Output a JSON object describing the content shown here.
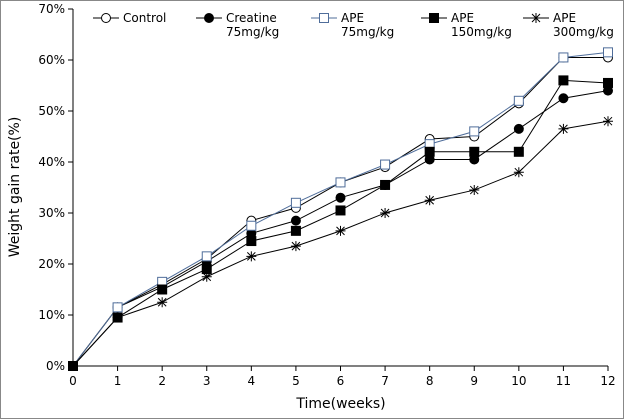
{
  "chart_data": {
    "type": "line",
    "x_label": "Time(weeks)",
    "y_label": "Weight gain rate(%)",
    "x": [
      0,
      1,
      2,
      3,
      4,
      5,
      6,
      7,
      8,
      9,
      10,
      11,
      12
    ],
    "xlim": [
      0,
      12
    ],
    "xticks": [
      0,
      1,
      2,
      3,
      4,
      5,
      6,
      7,
      8,
      9,
      10,
      11,
      12
    ],
    "ylim": [
      0,
      70
    ],
    "yticks": [
      {
        "value": 0,
        "label": "0%"
      },
      {
        "value": 10,
        "label": "10%"
      },
      {
        "value": 20,
        "label": "20%"
      },
      {
        "value": 30,
        "label": "30%"
      },
      {
        "value": 40,
        "label": "40%"
      },
      {
        "value": 50,
        "label": "50%"
      },
      {
        "value": 60,
        "label": "60%"
      },
      {
        "value": 70,
        "label": "70%"
      }
    ],
    "series": [
      {
        "name": "Control",
        "color": "#000000",
        "marker": "circle-open",
        "values": [
          0,
          11.5,
          16,
          21,
          28.5,
          31,
          36,
          39,
          44.5,
          45,
          51.5,
          60.5,
          60.5
        ]
      },
      {
        "name": "Creatine\n75mg/kg",
        "color": "#000000",
        "marker": "circle-filled",
        "values": [
          0,
          11.5,
          15.5,
          20.5,
          26,
          28.5,
          33,
          35.5,
          40.5,
          40.5,
          46.5,
          52.5,
          54
        ]
      },
      {
        "name": "APE\n75mg/kg",
        "color": "#4f6d9a",
        "marker": "square-open",
        "values": [
          0,
          11.5,
          16.5,
          21.5,
          27.5,
          32,
          36,
          39.5,
          43.5,
          46,
          52,
          60.5,
          61.5
        ]
      },
      {
        "name": "APE\n150mg/kg",
        "color": "#000000",
        "marker": "square-filled",
        "values": [
          0,
          9.5,
          15,
          19,
          24.5,
          26.5,
          30.5,
          35.5,
          42,
          42,
          42,
          56,
          55.5
        ]
      },
      {
        "name": "APE\n300mg/kg",
        "color": "#000000",
        "marker": "asterisk",
        "values": [
          0,
          9.5,
          12.5,
          17.5,
          21.5,
          23.5,
          26.5,
          30,
          32.5,
          34.5,
          38,
          46.5,
          48
        ]
      }
    ]
  }
}
